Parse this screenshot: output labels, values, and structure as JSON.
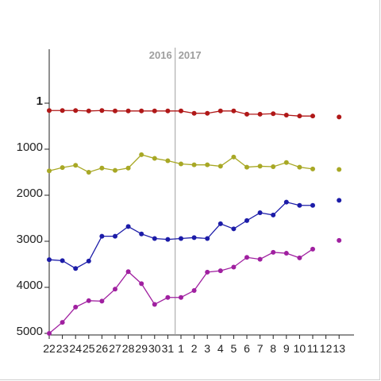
{
  "chart_data": {
    "type": "line",
    "title": "",
    "xlabel": "",
    "ylabel": "",
    "y_axis": {
      "reversed": true,
      "ylim": [
        1,
        5000
      ],
      "tick_labels": [
        "1",
        "1000",
        "2000",
        "3000",
        "4000",
        "5000"
      ]
    },
    "divider": {
      "left_label": "2016",
      "right_label": "2017"
    },
    "categories": [
      "22",
      "23",
      "24",
      "25",
      "26",
      "27",
      "28",
      "29",
      "30",
      "31",
      "1",
      "2",
      "3",
      "4",
      "5",
      "6",
      "7",
      "8",
      "9",
      "10",
      "11",
      "12",
      "13"
    ],
    "series": [
      {
        "color": "#b01818",
        "values": [
          160,
          160,
          160,
          170,
          160,
          170,
          170,
          170,
          170,
          170,
          170,
          220,
          220,
          170,
          170,
          240,
          240,
          230,
          260,
          280,
          280,
          null,
          300
        ]
      },
      {
        "color": "#a8a825",
        "values": [
          1470,
          1400,
          1350,
          1500,
          1410,
          1460,
          1410,
          1120,
          1200,
          1250,
          1320,
          1340,
          1340,
          1370,
          1170,
          1390,
          1370,
          1380,
          1290,
          1390,
          1430,
          null,
          1440
        ]
      },
      {
        "color": "#1c1ca8",
        "values": [
          3400,
          3420,
          3590,
          3430,
          2890,
          2890,
          2680,
          2840,
          2940,
          2960,
          2940,
          2920,
          2940,
          2620,
          2730,
          2550,
          2380,
          2430,
          2150,
          2220,
          2220,
          null,
          2110
        ]
      },
      {
        "color": "#a020a0",
        "values": [
          5000,
          4760,
          4430,
          4290,
          4300,
          4040,
          3660,
          3920,
          4370,
          4220,
          4220,
          4070,
          3670,
          3640,
          3560,
          3350,
          3390,
          3240,
          3260,
          3360,
          3170,
          null,
          2980
        ]
      }
    ]
  }
}
